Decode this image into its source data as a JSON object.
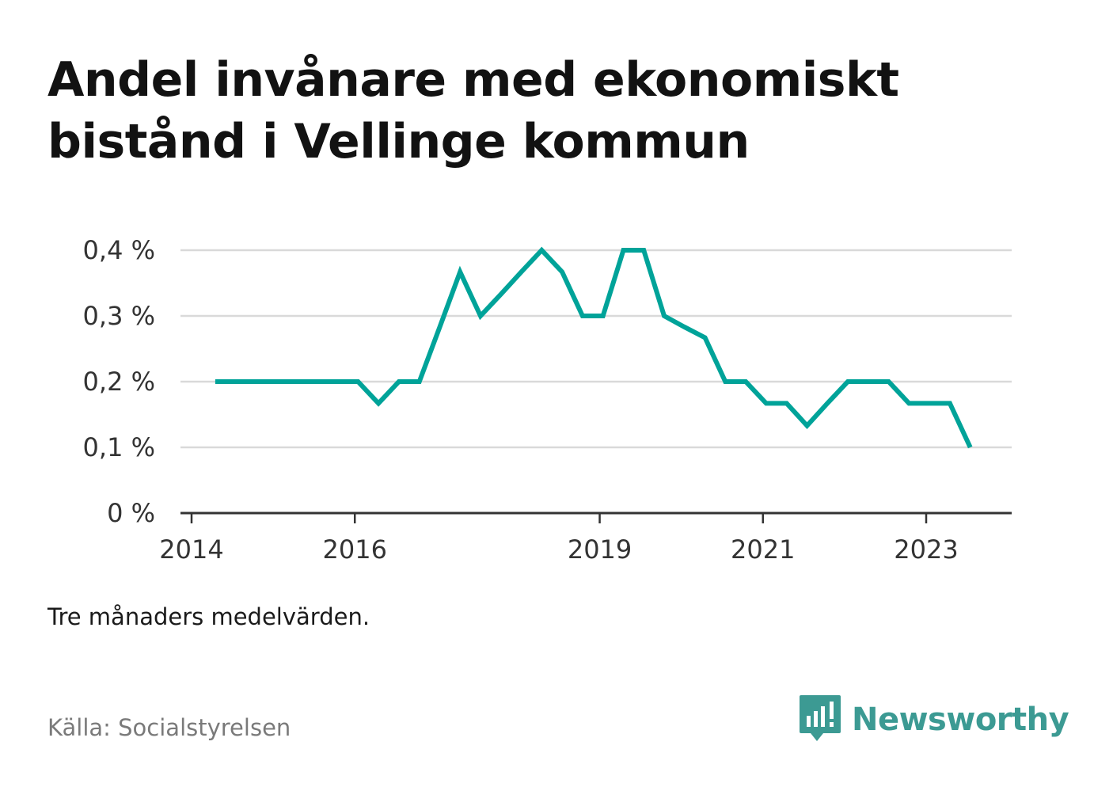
{
  "title": {
    "line1": "Andel invånare med ekonomiskt",
    "line2": "bistånd i Vellinge kommun"
  },
  "note": "Tre månaders medelvärden.",
  "source": "Källa: Socialstyrelsen",
  "brand": {
    "name": "Newsworthy",
    "icon": "newsworthy-logo-icon",
    "color": "#3c9a93"
  },
  "colors": {
    "line": "#00a399",
    "grid": "#d9d9d9",
    "axis": "#333333"
  },
  "chart_data": {
    "type": "line",
    "title": "Andel invånare med ekonomiskt bistånd i Vellinge kommun",
    "xlabel": "",
    "ylabel": "",
    "x_ticks": [
      "2014",
      "2016",
      "2019",
      "2021",
      "2023"
    ],
    "x_tick_values": [
      2014.0,
      2016.0,
      2019.0,
      2021.0,
      2023.0
    ],
    "y_ticks": [
      "0 %",
      "0,1 %",
      "0,2 %",
      "0,3 %",
      "0,4 %"
    ],
    "y_tick_values": [
      0,
      0.1,
      0.2,
      0.3,
      0.4
    ],
    "ylim": [
      0,
      0.4
    ],
    "xlim": [
      2013.9,
      2024.15
    ],
    "grid": "horizontal",
    "series": [
      {
        "x": [
          2014.29,
          2014.54,
          2014.79,
          2015.04,
          2015.29,
          2015.54,
          2015.79,
          2016.04,
          2016.29,
          2016.54,
          2016.79,
          2017.04,
          2017.29,
          2017.54,
          2017.79,
          2018.04,
          2018.29,
          2018.54,
          2018.79,
          2019.04,
          2019.29,
          2019.54,
          2019.79,
          2020.04,
          2020.29,
          2020.54,
          2020.79,
          2021.04,
          2021.29,
          2021.54,
          2021.79,
          2022.04,
          2022.29,
          2022.54,
          2022.79,
          2023.04,
          2023.29,
          2023.54
        ],
        "values": [
          0.2,
          0.2,
          0.2,
          0.2,
          0.2,
          0.2,
          0.2,
          0.2,
          0.167,
          0.2,
          0.2,
          0.283,
          0.367,
          0.3,
          0.333,
          0.367,
          0.4,
          0.367,
          0.3,
          0.3,
          0.4,
          0.4,
          0.3,
          0.283,
          0.267,
          0.2,
          0.2,
          0.167,
          0.167,
          0.133,
          0.167,
          0.2,
          0.2,
          0.2,
          0.167,
          0.167,
          0.167,
          0.1
        ]
      }
    ]
  }
}
